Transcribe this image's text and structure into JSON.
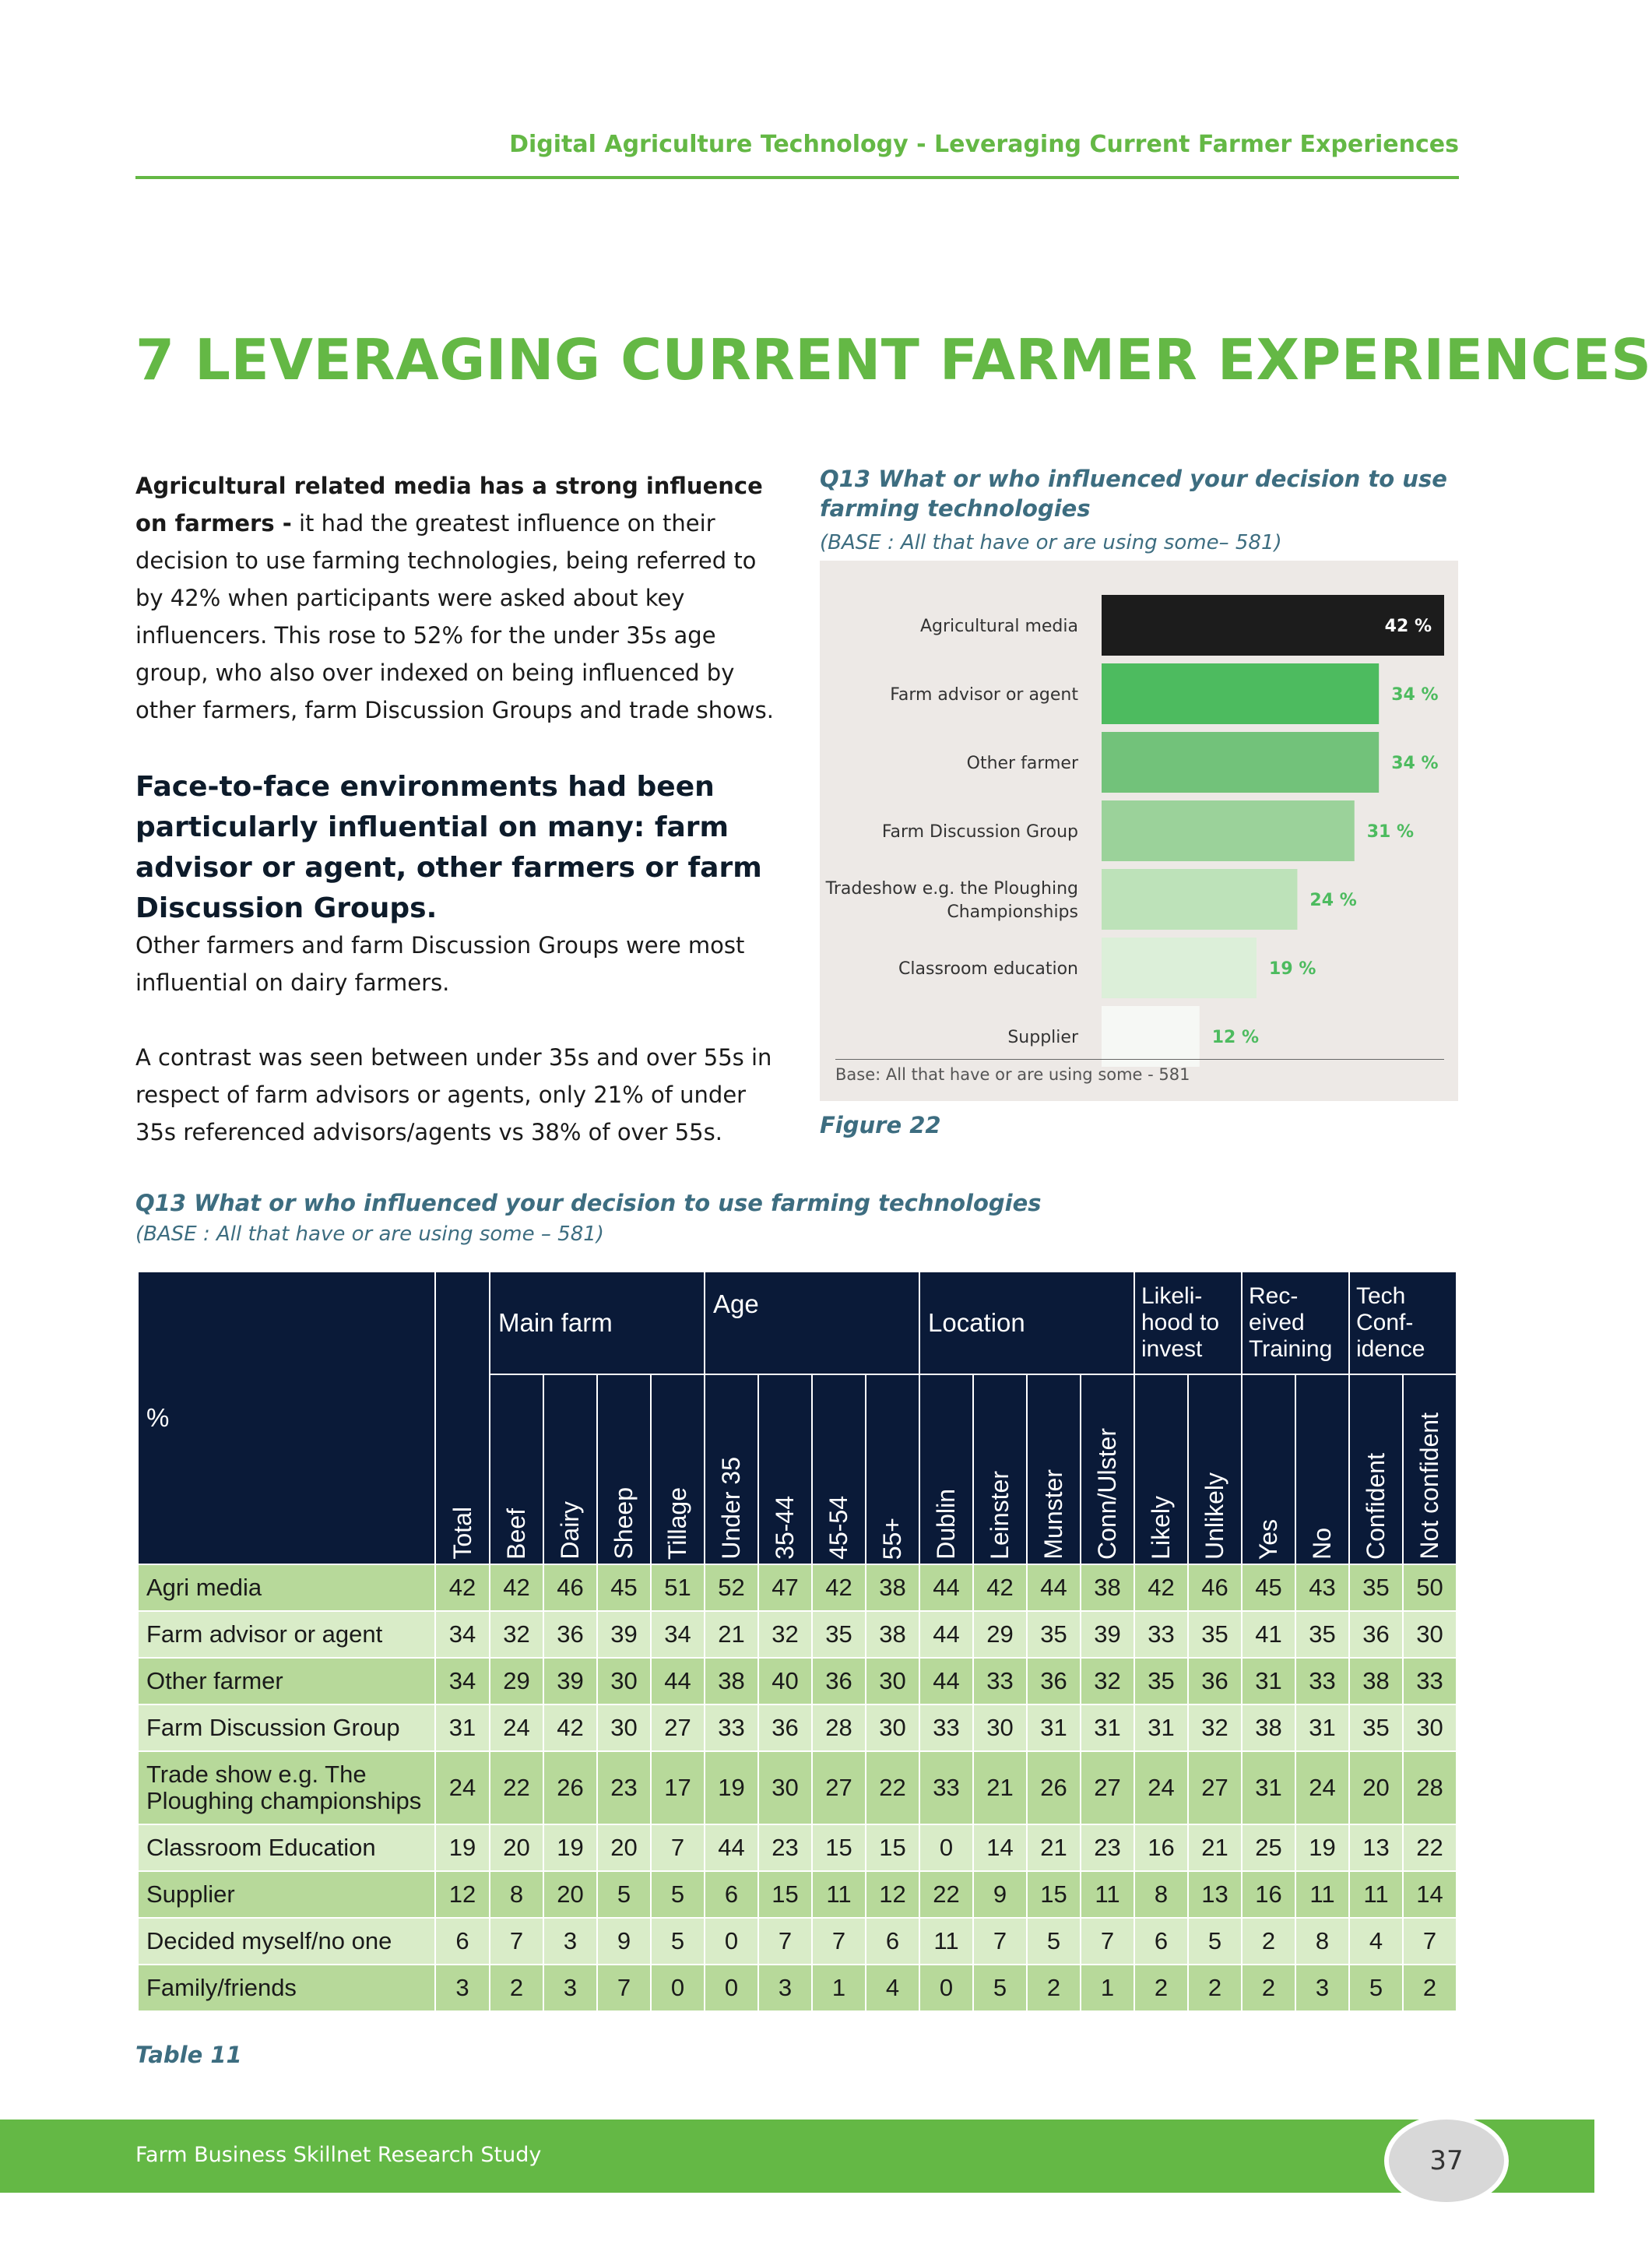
{
  "header": {
    "running_title": "Digital Agriculture Technology - Leveraging Current Farmer Experiences",
    "section_title": "7 LEVERAGING CURRENT FARMER EXPERIENCES"
  },
  "body": {
    "p1_bold": "Agricultural related media has a strong influence on farmers -",
    "p1_text": " it had the greatest influence on their decision to use farming technologies, being referred to by 42% when participants were asked about key influencers.  This rose to 52% for the under 35s age group, who also over indexed on being influenced by other farmers, farm Discussion Groups and trade shows.",
    "p2": "Face-to-face environments had been particularly influential on many: farm advisor or agent, other farmers or farm Discussion Groups.",
    "p3": "Other farmers and farm Discussion Groups were most influential on dairy farmers.",
    "p4": "A contrast was seen between under 35s and over 55s in respect of farm advisors or agents, only 21% of under 35s referenced advisors/agents vs 38% of over 55s."
  },
  "chart_section": {
    "question": "Q13 What or who influenced your decision to use farming technologies",
    "base": "(BASE : All that have or are using some– 581)",
    "footnote": "Base: All that have or are using some - 581",
    "caption": "Figure 22"
  },
  "chart_data": {
    "type": "bar",
    "orientation": "horizontal",
    "categories": [
      "Agricultural media",
      "Farm advisor or agent",
      "Other farmer",
      "Farm Discussion Group",
      "Tradeshow e.g. the Ploughing Championships",
      "Classroom education",
      "Supplier"
    ],
    "values": [
      42,
      34,
      34,
      31,
      24,
      19,
      12
    ],
    "value_labels": [
      "42 %",
      "34 %",
      "34 %",
      "31 %",
      "24 %",
      "19 %",
      "12 %"
    ],
    "bar_colors": [
      "#1c1c1c",
      "#4dbb5f",
      "#72c27a",
      "#9bd29a",
      "#bde2b9",
      "#dcefd9",
      "#f6f8f5"
    ],
    "label_colors": [
      "#ffffff",
      "#4dbb5f",
      "#4dbb5f",
      "#4dbb5f",
      "#4dbb5f",
      "#4dbb5f",
      "#4dbb5f"
    ],
    "xlim": [
      0,
      42
    ]
  },
  "table_section": {
    "question": "Q13 What or who influenced your decision to use farming technologies",
    "base": "(BASE : All that have or are using some – 581)",
    "caption": "Table 11",
    "corner": "%",
    "groups": {
      "main_farm": "Main farm",
      "age": "Age",
      "location": "Location",
      "likelihood": [
        "Likeli-",
        "hood to",
        "invest"
      ],
      "received": [
        "Rec-",
        "eived",
        "Training"
      ],
      "tech": [
        "Tech",
        "Conf-",
        "idence"
      ]
    },
    "columns": [
      "Total",
      "Beef",
      "Dairy",
      "Sheep",
      "Tillage",
      "Under 35",
      "35-44",
      "45-54",
      "55+",
      "Dublin",
      "Leinster",
      "Munster",
      "Conn/Ulster",
      "Likely",
      "Unlikely",
      "Yes",
      "No",
      "Confident",
      "Not confident"
    ],
    "rows": [
      {
        "label": [
          "Agri media"
        ],
        "values": [
          "42",
          "42",
          "46",
          "45",
          "51",
          "52",
          "47",
          "42",
          "38",
          "44",
          "42",
          "44",
          "38",
          "42",
          "46",
          "45",
          "43",
          "35",
          "50"
        ]
      },
      {
        "label": [
          "Farm advisor or agent"
        ],
        "values": [
          "34",
          "32",
          "36",
          "39",
          "34",
          "21",
          "32",
          "35",
          "38",
          "44",
          "29",
          "35",
          "39",
          "33",
          "35",
          "41",
          "35",
          "36",
          "30"
        ]
      },
      {
        "label": [
          "Other farmer"
        ],
        "values": [
          "34",
          "29",
          "39",
          "30",
          "44",
          "38",
          "40",
          "36",
          "30",
          "44",
          "33",
          "36",
          "32",
          "35",
          "36",
          "31",
          "33",
          "38",
          "33"
        ]
      },
      {
        "label": [
          "Farm Discussion Group"
        ],
        "values": [
          "31",
          "24",
          "42",
          "30",
          "27",
          "33",
          "36",
          "28",
          "30",
          "33",
          "30",
          "31",
          "31",
          "31",
          "32",
          "38",
          "31",
          "35",
          "30"
        ]
      },
      {
        "label": [
          "Trade show e.g. The",
          "Ploughing championships"
        ],
        "values": [
          "24",
          "22",
          "26",
          "23",
          "17",
          "19",
          "30",
          "27",
          "22",
          "33",
          "21",
          "26",
          "27",
          "24",
          "27",
          "31",
          "24",
          "20",
          "28"
        ]
      },
      {
        "label": [
          "Classroom Education"
        ],
        "values": [
          "19",
          "20",
          "19",
          "20",
          "7",
          "44",
          "23",
          "15",
          "15",
          "0",
          "14",
          "21",
          "23",
          "16",
          "21",
          "25",
          "19",
          "13",
          "22"
        ]
      },
      {
        "label": [
          "Supplier"
        ],
        "values": [
          "12",
          "8",
          "20",
          "5",
          "5",
          "6",
          "15",
          "11",
          "12",
          "22",
          "9",
          "15",
          "11",
          "8",
          "13",
          "16",
          "11",
          "11",
          "14"
        ]
      },
      {
        "label": [
          "Decided myself/no one"
        ],
        "values": [
          "6",
          "7",
          "3",
          "9",
          "5",
          "0",
          "7",
          "7",
          "6",
          "11",
          "7",
          "5",
          "7",
          "6",
          "5",
          "2",
          "8",
          "4",
          "7"
        ]
      },
      {
        "label": [
          "Family/friends"
        ],
        "values": [
          "3",
          "2",
          "3",
          "7",
          "0",
          "0",
          "3",
          "1",
          "4",
          "0",
          "5",
          "2",
          "1",
          "2",
          "2",
          "2",
          "3",
          "5",
          "2"
        ]
      }
    ]
  },
  "footer": {
    "study": "Farm Business Skillnet Research Study",
    "page_number": "37"
  }
}
